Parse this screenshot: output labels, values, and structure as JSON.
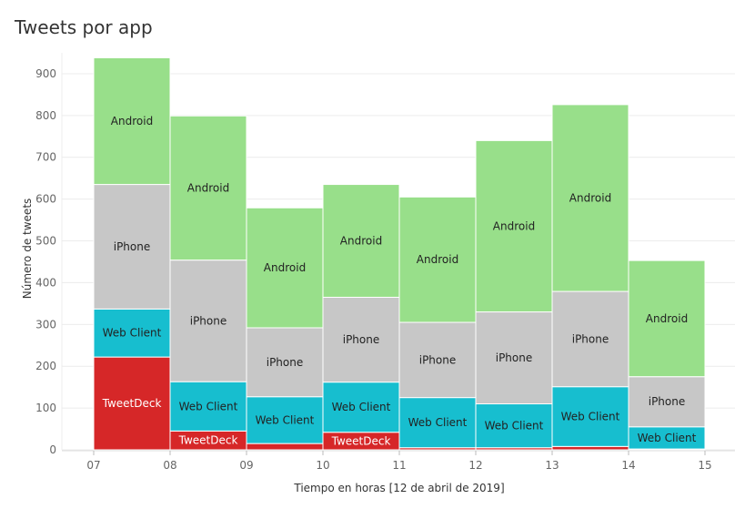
{
  "chart_data": {
    "type": "bar",
    "title": "Tweets por app",
    "xlabel": "Tiempo en horas [12 de abril de 2019]",
    "ylabel": "Número de tweets",
    "ylim": [
      0,
      950
    ],
    "y_ticks": [
      0,
      100,
      200,
      300,
      400,
      500,
      600,
      700,
      800,
      900
    ],
    "x_ticks": [
      "07",
      "08",
      "09",
      "10",
      "11",
      "12",
      "13",
      "14",
      "15"
    ],
    "grid": true,
    "stacked": true,
    "categories": [
      "07",
      "08",
      "09",
      "10",
      "11",
      "12",
      "13",
      "14"
    ],
    "series": [
      {
        "name": "TweetDeck",
        "color": "#d62728",
        "label_color": "#ffffff",
        "values": [
          222,
          45,
          15,
          42,
          5,
          5,
          8,
          2
        ],
        "labels": [
          "TweetDeck",
          "TweetDeck",
          "",
          "TweetDeck",
          "",
          "",
          "",
          ""
        ]
      },
      {
        "name": "Web Client",
        "color": "#17becf",
        "label_color": "#222222",
        "values": [
          115,
          118,
          112,
          120,
          120,
          105,
          143,
          53
        ],
        "labels": [
          "Web Client",
          "Web Client",
          "Web Client",
          "Web Client",
          "Web Client",
          "Web Client",
          "Web Client",
          "Web Client"
        ]
      },
      {
        "name": "iPhone",
        "color": "#c7c7c7",
        "label_color": "#222222",
        "values": [
          298,
          291,
          165,
          203,
          180,
          220,
          228,
          120
        ],
        "labels": [
          "iPhone",
          "iPhone",
          "iPhone",
          "iPhone",
          "iPhone",
          "iPhone",
          "iPhone",
          "iPhone"
        ]
      },
      {
        "name": "Android",
        "color": "#98df8a",
        "label_color": "#222222",
        "values": [
          303,
          345,
          287,
          270,
          300,
          410,
          447,
          278
        ],
        "labels": [
          "Android",
          "Android",
          "Android",
          "Android",
          "Android",
          "Android",
          "Android",
          "Android"
        ]
      }
    ]
  }
}
